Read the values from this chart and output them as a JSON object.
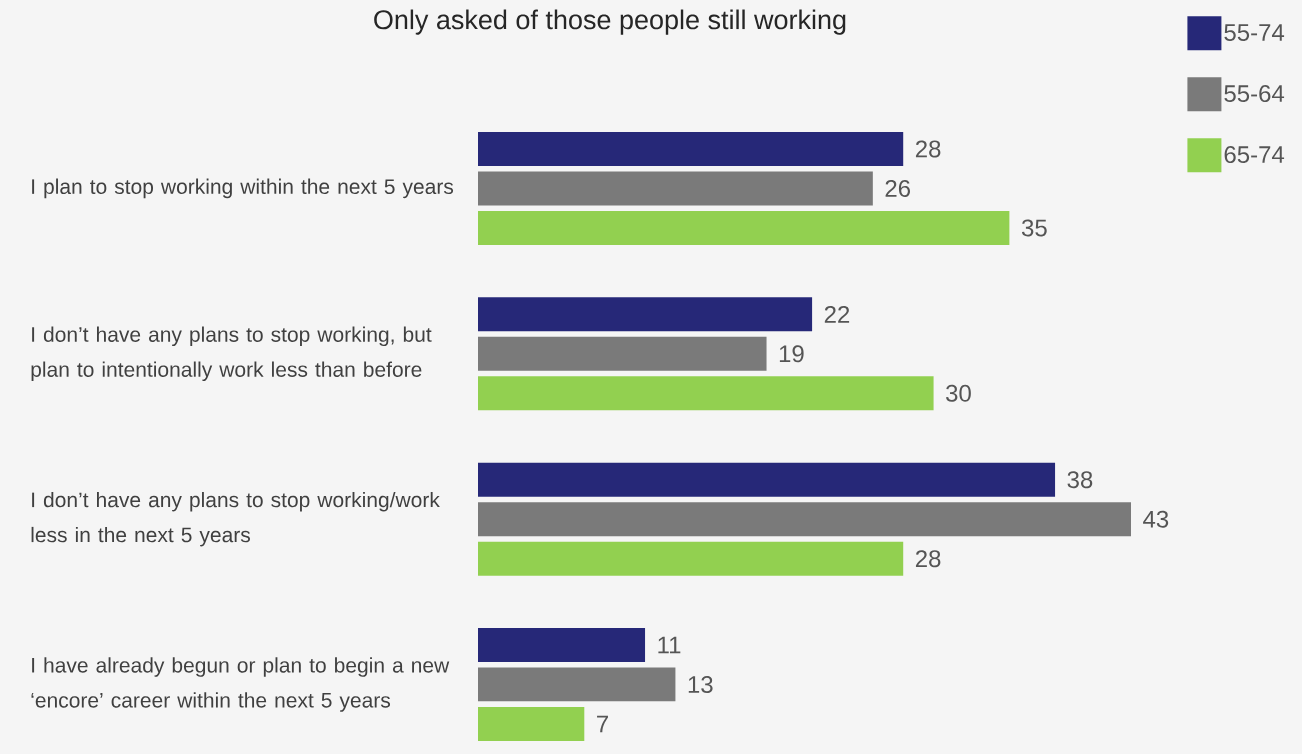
{
  "chart_data": {
    "type": "bar",
    "orientation": "horizontal",
    "title": "Only asked of those people still working",
    "categories": [
      "I plan to stop working within the next 5 years",
      "I don’t have any plans to stop working, but plan to intentionally work less than before",
      "I don’t have any plans to stop working/work less in the next 5 years",
      "I have already begun or plan to begin a new ‘encore’ career within the next 5 years"
    ],
    "series": [
      {
        "name": "55-74",
        "color": "#262878",
        "values": [
          28,
          22,
          38,
          11
        ]
      },
      {
        "name": "55-64",
        "color": "#7a7a7a",
        "values": [
          26,
          19,
          43,
          13
        ]
      },
      {
        "name": "65-74",
        "color": "#92d050",
        "values": [
          35,
          30,
          28,
          7
        ]
      }
    ],
    "data_labels": true,
    "legend": "top right"
  }
}
